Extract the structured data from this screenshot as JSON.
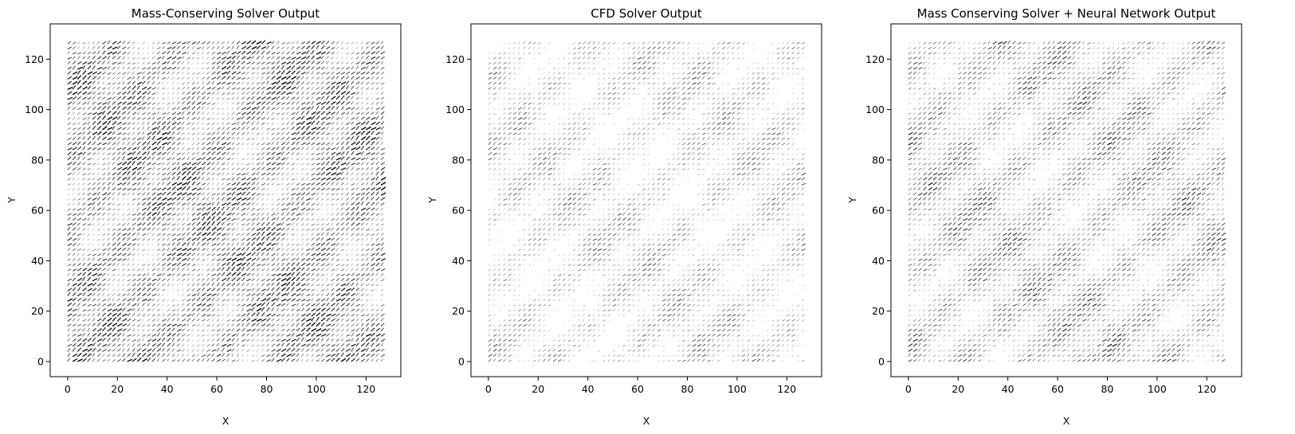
{
  "chart_data": [
    {
      "type": "quiver",
      "title": "Mass-Conserving Solver Output",
      "xlabel": "X",
      "ylabel": "Y",
      "xlim": [
        -7,
        134
      ],
      "ylim": [
        -6,
        134
      ],
      "xticks": [
        "0",
        "20",
        "40",
        "60",
        "80",
        "100",
        "120"
      ],
      "yticks": [
        "0",
        "20",
        "40",
        "60",
        "80",
        "100",
        "120"
      ],
      "grid_range": [
        0,
        127
      ],
      "arrow_color": "#000000",
      "arrow_density": "high"
    },
    {
      "type": "quiver",
      "title": "CFD Solver Output",
      "xlabel": "X",
      "ylabel": "Y",
      "xlim": [
        -7,
        134
      ],
      "ylim": [
        -6,
        134
      ],
      "xticks": [
        "0",
        "20",
        "40",
        "60",
        "80",
        "100",
        "120"
      ],
      "yticks": [
        "0",
        "20",
        "40",
        "60",
        "80",
        "100",
        "120"
      ],
      "grid_range": [
        0,
        127
      ],
      "arrow_color": "#000000",
      "arrow_density": "low"
    },
    {
      "type": "quiver",
      "title": "Mass Conserving Solver + Neural Network Output",
      "xlabel": "X",
      "ylabel": "Y",
      "xlim": [
        -7,
        134
      ],
      "ylim": [
        -6,
        134
      ],
      "xticks": [
        "0",
        "20",
        "40",
        "60",
        "80",
        "100",
        "120"
      ],
      "yticks": [
        "0",
        "20",
        "40",
        "60",
        "80",
        "100",
        "120"
      ],
      "grid_range": [
        0,
        127
      ],
      "arrow_color": "#000000",
      "arrow_density": "medium"
    }
  ]
}
